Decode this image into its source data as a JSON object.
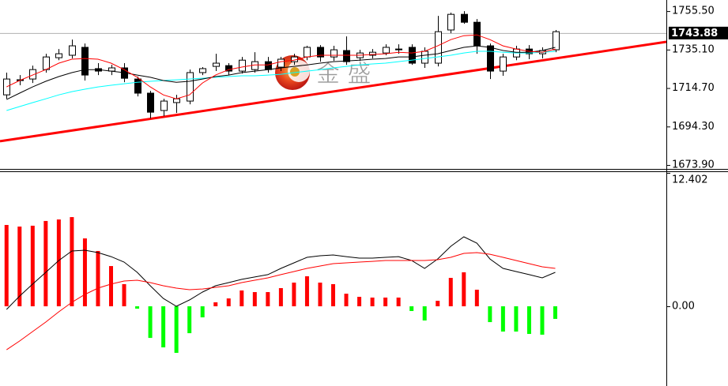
{
  "chart_data": [
    {
      "type": "candlestick",
      "xlim": [
        -0.5,
        50.5
      ],
      "ylim": [
        1671.4,
        1761.4
      ],
      "yticks": [
        {
          "value": 1755.5,
          "label": "1755.50"
        },
        {
          "value": 1735.1,
          "label": "1735.10"
        },
        {
          "value": 1714.7,
          "label": "1714.70"
        },
        {
          "value": 1694.3,
          "label": "1694.30"
        },
        {
          "value": 1673.9,
          "label": "1673.90"
        }
      ],
      "open": [
        1711.1,
        1718.7,
        1719.5,
        1724.5,
        1730.8,
        1732.1,
        1736.3,
        1725.0,
        1723.7,
        1725.4,
        1719.5,
        1712.0,
        1702.8,
        1707.0,
        1707.8,
        1722.9,
        1726.2,
        1726.6,
        1723.7,
        1724.5,
        1728.7,
        1725.8,
        1728.7,
        1731.2,
        1736.3,
        1731.2,
        1734.6,
        1730.8,
        1732.1,
        1733.3,
        1735.4,
        1736.3,
        1727.9,
        1727.9,
        1745.5,
        1753.8,
        1749.6,
        1737.1,
        1723.7,
        1731.2,
        1735.4,
        1732.9,
        1735.0
      ],
      "high": [
        1722.9,
        1721.6,
        1726.6,
        1732.9,
        1735.4,
        1740.4,
        1738.3,
        1727.9,
        1727.0,
        1727.9,
        1720.8,
        1713.2,
        1709.0,
        1711.1,
        1724.5,
        1725.8,
        1732.9,
        1727.9,
        1731.2,
        1733.7,
        1731.2,
        1731.2,
        1732.9,
        1737.1,
        1737.5,
        1737.1,
        1742.1,
        1735.0,
        1735.4,
        1737.9,
        1737.9,
        1737.9,
        1736.3,
        1753.0,
        1754.7,
        1755.5,
        1751.3,
        1738.3,
        1732.9,
        1737.1,
        1737.5,
        1736.3,
        1745.5
      ],
      "low": [
        1709.0,
        1716.2,
        1717.4,
        1722.9,
        1729.5,
        1730.4,
        1718.7,
        1721.6,
        1721.6,
        1717.8,
        1710.3,
        1698.6,
        1699.8,
        1701.5,
        1706.1,
        1721.6,
        1723.7,
        1721.6,
        1722.4,
        1722.9,
        1722.9,
        1723.7,
        1727.0,
        1729.5,
        1728.7,
        1729.1,
        1727.0,
        1729.1,
        1730.4,
        1732.1,
        1732.9,
        1727.0,
        1725.4,
        1726.2,
        1743.8,
        1748.8,
        1732.9,
        1719.5,
        1721.2,
        1729.5,
        1730.0,
        1730.4,
        1733.7
      ],
      "close": [
        1719.5,
        1719.1,
        1724.5,
        1731.2,
        1732.9,
        1737.1,
        1721.6,
        1723.7,
        1725.4,
        1719.9,
        1712.0,
        1701.9,
        1707.8,
        1709.0,
        1722.9,
        1725.0,
        1727.9,
        1723.7,
        1729.5,
        1728.7,
        1724.5,
        1730.0,
        1731.2,
        1736.3,
        1731.2,
        1735.0,
        1728.7,
        1733.3,
        1733.7,
        1736.3,
        1735.0,
        1727.9,
        1734.2,
        1744.6,
        1753.8,
        1749.6,
        1737.1,
        1723.7,
        1731.2,
        1735.4,
        1732.9,
        1734.6,
        1744.6
      ],
      "overlays": [
        {
          "color": "#00ffff",
          "values": [
            1702.8,
            1704.9,
            1707.0,
            1709.0,
            1711.1,
            1712.8,
            1714.1,
            1715.3,
            1716.2,
            1717.0,
            1717.8,
            1718.3,
            1718.7,
            1719.1,
            1719.5,
            1719.9,
            1720.4,
            1720.8,
            1721.2,
            1721.2,
            1721.6,
            1722.0,
            1722.9,
            1723.7,
            1724.5,
            1725.4,
            1726.2,
            1727.0,
            1727.5,
            1727.9,
            1728.7,
            1729.5,
            1730.4,
            1731.2,
            1732.1,
            1733.3,
            1734.2,
            1734.2,
            1733.7,
            1733.3,
            1733.3,
            1733.7,
            1734.2
          ]
        },
        {
          "color": "#000000",
          "values": [
            1708.6,
            1712.0,
            1715.3,
            1718.3,
            1720.8,
            1722.9,
            1724.5,
            1724.5,
            1723.7,
            1722.9,
            1721.6,
            1720.4,
            1718.7,
            1717.8,
            1718.3,
            1719.5,
            1720.8,
            1721.6,
            1722.9,
            1723.7,
            1724.5,
            1725.4,
            1726.2,
            1727.0,
            1727.9,
            1728.7,
            1729.1,
            1729.5,
            1730.0,
            1730.4,
            1731.2,
            1731.2,
            1732.1,
            1732.9,
            1734.6,
            1736.3,
            1737.1,
            1736.3,
            1734.6,
            1733.7,
            1733.7,
            1734.6,
            1736.3
          ]
        },
        {
          "color": "#ff0000",
          "values": [
            1715.3,
            1718.7,
            1721.6,
            1724.5,
            1727.9,
            1730.0,
            1730.4,
            1730.0,
            1727.9,
            1724.5,
            1720.4,
            1715.3,
            1711.1,
            1709.0,
            1711.1,
            1717.4,
            1721.6,
            1724.5,
            1725.8,
            1727.0,
            1727.0,
            1728.7,
            1729.5,
            1731.2,
            1732.1,
            1732.1,
            1732.1,
            1732.1,
            1732.5,
            1732.9,
            1733.7,
            1733.3,
            1734.2,
            1737.1,
            1740.4,
            1742.5,
            1742.9,
            1740.4,
            1737.1,
            1735.4,
            1734.2,
            1733.7,
            1735.4
          ]
        }
      ],
      "trendline": {
        "color": "#ff0000",
        "x": [
          -0.5,
          50.5
        ],
        "y": [
          1686.5,
          1739.2
        ]
      },
      "last_price": 1743.88,
      "watermark": "金 盛"
    },
    {
      "type": "histogram",
      "xlim": [
        -0.5,
        50.5
      ],
      "ylim": [
        -7.41,
        12.402
      ],
      "yticks": [
        12.402,
        {
          "value": 0,
          "label": "0.00"
        }
      ],
      "up_color": "#ff0000",
      "down_color": "#00ff00",
      "values": [
        7.56,
        7.41,
        7.49,
        7.93,
        8.07,
        8.29,
        6.31,
        5.14,
        3.74,
        2.06,
        -0.22,
        -2.94,
        -3.82,
        -4.33,
        -2.5,
        -1.03,
        0.37,
        0.73,
        1.47,
        1.32,
        1.32,
        1.69,
        2.2,
        2.79,
        2.2,
        2.06,
        1.17,
        0.88,
        0.81,
        0.81,
        0.81,
        -0.44,
        -1.32,
        0.51,
        2.64,
        3.16,
        1.54,
        -1.47,
        -2.35,
        -2.35,
        -2.57,
        -2.64,
        -1.17
      ],
      "overlays": [
        {
          "color": "#000000",
          "values": [
            -0.29,
            0.95,
            2.06,
            3.16,
            4.26,
            5.14,
            5.21,
            4.99,
            4.62,
            4.11,
            3.16,
            1.91,
            0.73,
            0.0,
            0.59,
            1.32,
            1.91,
            2.2,
            2.5,
            2.72,
            2.94,
            3.52,
            4.04,
            4.55,
            4.7,
            4.77,
            4.62,
            4.48,
            4.48,
            4.55,
            4.62,
            4.26,
            3.52,
            4.4,
            5.58,
            6.46,
            5.87,
            4.4,
            3.52,
            3.23,
            2.94,
            2.64,
            3.16
          ]
        },
        {
          "color": "#ff0000",
          "values": [
            -4.04,
            -3.23,
            -2.35,
            -1.47,
            -0.51,
            0.37,
            1.1,
            1.69,
            2.06,
            2.35,
            2.42,
            2.2,
            1.91,
            1.69,
            1.54,
            1.61,
            1.76,
            1.91,
            2.2,
            2.42,
            2.64,
            2.94,
            3.23,
            3.52,
            3.74,
            3.96,
            4.04,
            4.11,
            4.18,
            4.26,
            4.26,
            4.26,
            4.26,
            4.33,
            4.55,
            4.92,
            4.99,
            4.84,
            4.55,
            4.26,
            3.96,
            3.67,
            3.52
          ]
        }
      ]
    }
  ]
}
